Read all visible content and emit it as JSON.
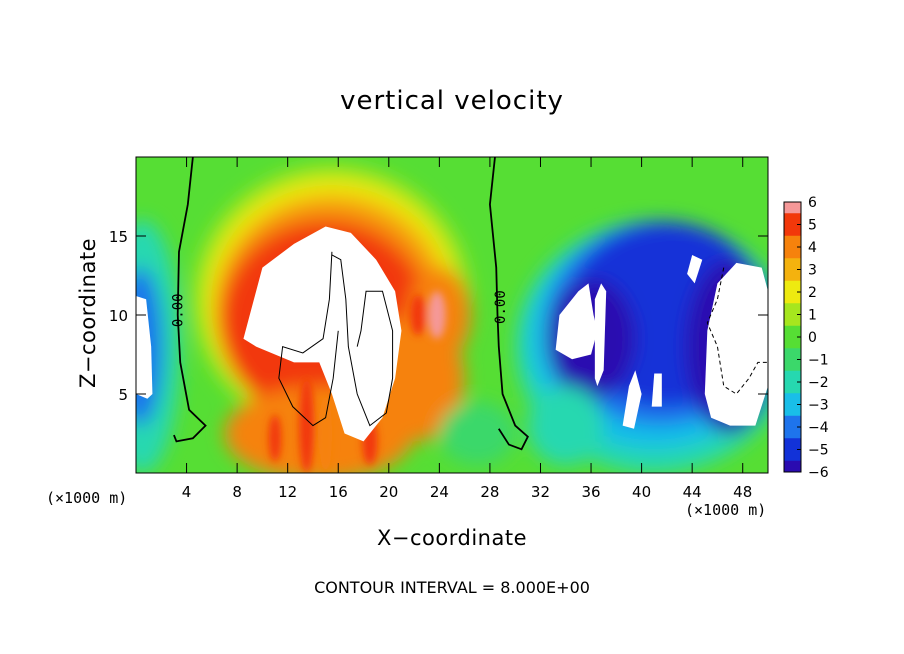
{
  "chart_data": {
    "type": "heatmap",
    "title": "vertical velocity",
    "xlabel": "X−coordinate",
    "ylabel": "Z−coordinate",
    "x_unit": "(×1000 m)",
    "xlim": [
      0,
      50
    ],
    "ylim": [
      0,
      20
    ],
    "xticks": [
      4,
      8,
      12,
      16,
      20,
      24,
      28,
      32,
      36,
      40,
      44,
      48
    ],
    "yticks": [
      5,
      10,
      15
    ],
    "colorbar": {
      "range": [
        -6,
        6
      ],
      "ticks": [
        6,
        5,
        4,
        3,
        2,
        1,
        0,
        -1,
        -2,
        -3,
        -4,
        -5,
        -6
      ],
      "tick_labels": [
        "6",
        "5",
        "4",
        "3",
        "2",
        "1",
        "0",
        "−1",
        "−2",
        "−3",
        "−4",
        "−5",
        "−6"
      ],
      "out_of_range_color": "#ffffff"
    },
    "contour_labels": [
      {
        "text": "0.00",
        "x": 3.3,
        "y": 10.3
      },
      {
        "text": "0.00",
        "x": 28.8,
        "y": 10.5
      }
    ],
    "features": [
      {
        "name": "main updraft core (w > 6)",
        "x_range": [
          7,
          22
        ],
        "z_range": [
          1.5,
          15.5
        ],
        "sign": "positive"
      },
      {
        "name": "downdraft region A (w < -6)",
        "x_range": [
          33,
          39
        ],
        "z_range": [
          5,
          12
        ],
        "sign": "negative"
      },
      {
        "name": "downdraft region B (w < -6)",
        "x_range": [
          44,
          50
        ],
        "z_range": [
          2.5,
          13
        ],
        "sign": "negative"
      },
      {
        "name": "left edge downdraft (w < -6)",
        "x_range": [
          0,
          1.2
        ],
        "z_range": [
          4.8,
          11.5
        ],
        "sign": "negative"
      }
    ],
    "contour_interval_note": "CONTOUR INTERVAL = 8.000E+00"
  }
}
